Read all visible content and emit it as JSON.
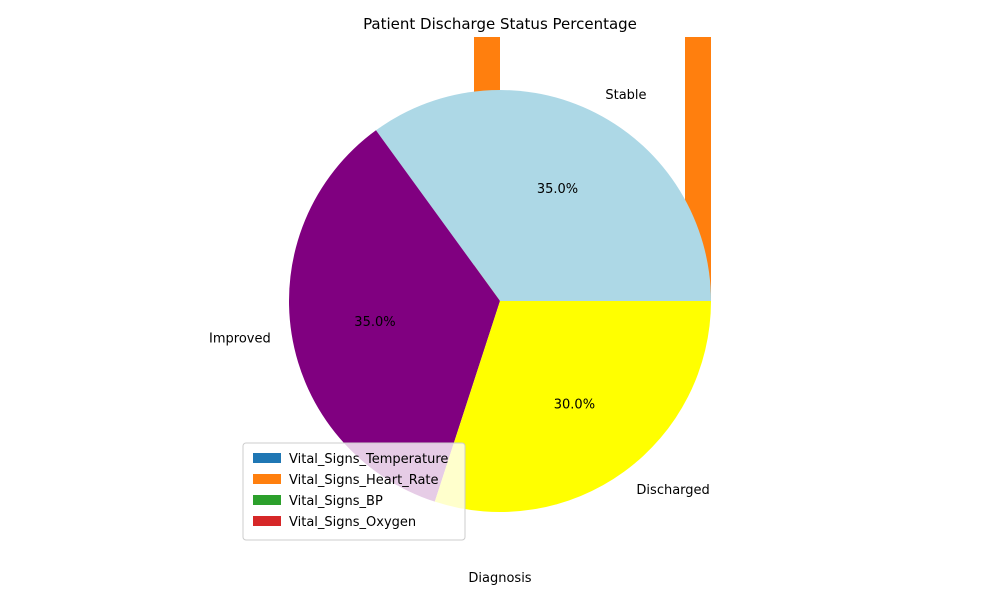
{
  "chart_data": [
    {
      "type": "pie",
      "title": "Patient Discharge Status Percentage",
      "slices": [
        {
          "label": "Stable",
          "value": 35.0,
          "pct_label": "35.0%",
          "color": "#add8e6"
        },
        {
          "label": "Improved",
          "value": 35.0,
          "pct_label": "35.0%",
          "color": "#800080"
        },
        {
          "label": "Discharged",
          "value": 30.0,
          "pct_label": "30.0%",
          "color": "#ffff00"
        }
      ],
      "start_angle_deg": 0,
      "direction": "counterclockwise"
    },
    {
      "type": "bar",
      "categories": [
        "Diagnosis"
      ],
      "xlabel": "Diagnosis",
      "ylabel": "",
      "legend_position": "lower-left",
      "series": [
        {
          "name": "Vital_Signs_Temperature",
          "color": "#1f77b4",
          "values": [
            0
          ]
        },
        {
          "name": "Vital_Signs_Heart_Rate",
          "color": "#ff7f0e",
          "values": [
            1
          ]
        },
        {
          "name": "Vital_Signs_BP",
          "color": "#2ca02c",
          "values": [
            0
          ]
        },
        {
          "name": "Vital_Signs_Oxygen",
          "color": "#d62728",
          "values": [
            0
          ]
        }
      ]
    }
  ]
}
